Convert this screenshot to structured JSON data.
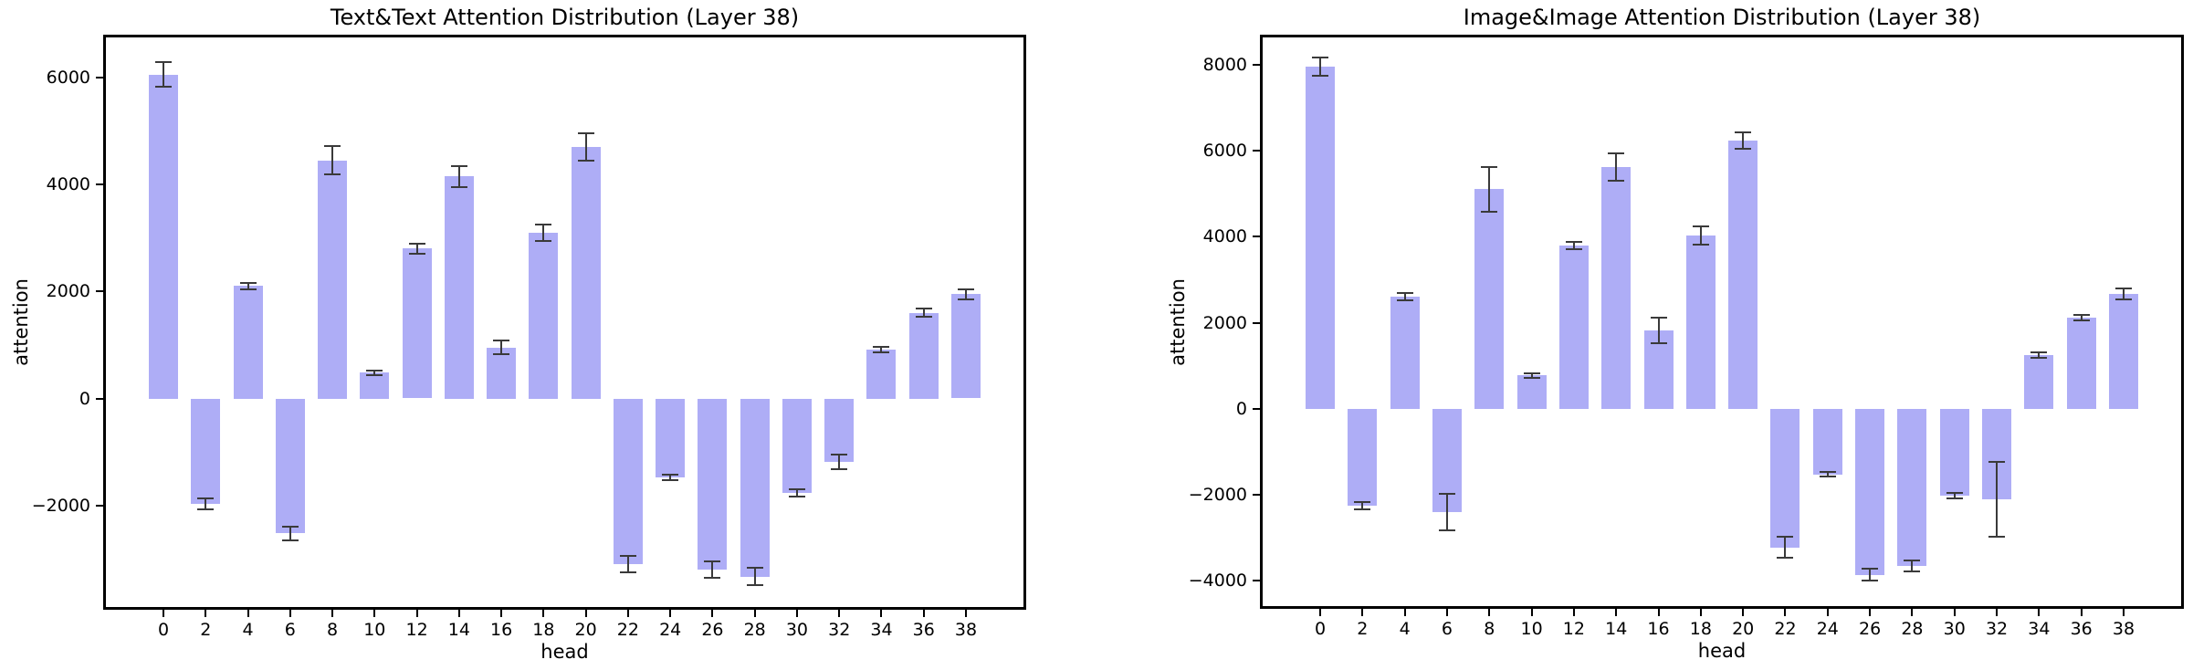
{
  "figure": {
    "background_color": "#ffffff",
    "colors": {
      "bar_fill": "#aeadf6",
      "error_bar": "#3a3a3a",
      "axis": "#000000",
      "text": "#000000"
    }
  },
  "chart_data": [
    {
      "type": "bar",
      "title": "Text&Text Attention Distribution (Layer 38)",
      "xlabel": "head",
      "ylabel": "attention",
      "grid": false,
      "legend": null,
      "categories": [
        0,
        2,
        4,
        6,
        8,
        10,
        12,
        14,
        16,
        18,
        20,
        22,
        24,
        26,
        28,
        30,
        32,
        34,
        36,
        38
      ],
      "values": [
        6050,
        -1970,
        2100,
        -2520,
        4450,
        480,
        2800,
        4150,
        950,
        3100,
        4700,
        -3100,
        -1480,
        -3200,
        -3330,
        -1770,
        -1190,
        920,
        1600,
        1950
      ],
      "errors": [
        230,
        100,
        60,
        130,
        260,
        45,
        90,
        200,
        130,
        150,
        250,
        150,
        55,
        150,
        160,
        70,
        135,
        50,
        80,
        95
      ],
      "yticks": [
        -2000,
        0,
        2000,
        4000,
        6000
      ],
      "ylim": [
        -3950,
        6800
      ]
    },
    {
      "type": "bar",
      "title": "Image&Image Attention Distribution (Layer 38)",
      "xlabel": "head",
      "ylabel": "attention",
      "grid": false,
      "legend": null,
      "categories": [
        0,
        2,
        4,
        6,
        8,
        10,
        12,
        14,
        16,
        18,
        20,
        22,
        24,
        26,
        28,
        30,
        32,
        34,
        36,
        38
      ],
      "values": [
        7950,
        -2250,
        2600,
        -2400,
        5110,
        780,
        3800,
        5620,
        1820,
        4030,
        6230,
        -3220,
        -1520,
        -3860,
        -3650,
        -2020,
        -2100,
        1250,
        2120,
        2670
      ],
      "errors": [
        210,
        90,
        85,
        430,
        520,
        55,
        90,
        320,
        290,
        220,
        190,
        250,
        60,
        140,
        130,
        60,
        870,
        70,
        65,
        125
      ],
      "yticks": [
        -4000,
        -2000,
        0,
        2000,
        4000,
        6000,
        8000
      ],
      "ylim": [
        -4650,
        8700
      ]
    }
  ]
}
